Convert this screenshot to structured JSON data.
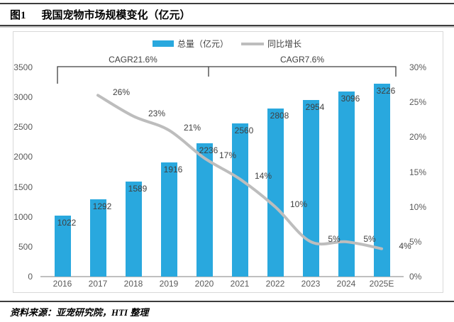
{
  "figure": {
    "tag": "图1",
    "title": "我国宠物市场规模变化（亿元）",
    "source": "资料来源：亚宠研究院，HTI 整理"
  },
  "legend": {
    "items": [
      {
        "label": "总量（亿元）",
        "swatch": "bar"
      },
      {
        "label": "同比增长",
        "swatch": "line"
      }
    ]
  },
  "colors": {
    "bar": "#29a8de",
    "line": "#bdbdbd",
    "label_text": "#3f3f3f",
    "axis_text": "#595959",
    "axis_line": "#bfbfbf",
    "bracket": "#3f3f3f"
  },
  "chart_data": {
    "type": "bar",
    "title": "我国宠物市场规模变化（亿元）",
    "categories": [
      "2016",
      "2017",
      "2018",
      "2019",
      "2020",
      "2021",
      "2022",
      "2023",
      "2024",
      "2025E"
    ],
    "series": [
      {
        "name": "总量（亿元）",
        "type": "bar",
        "axis": "left",
        "values": [
          1022,
          1292,
          1589,
          1916,
          2236,
          2560,
          2808,
          2954,
          3096,
          3226
        ]
      },
      {
        "name": "同比增长",
        "type": "line",
        "axis": "right",
        "values_pct": [
          null,
          26,
          23,
          21,
          17,
          14,
          10,
          5,
          5,
          4
        ],
        "labels": [
          null,
          "26%",
          "23%",
          "21%",
          "17%",
          "14%",
          "10%",
          "5%",
          "5%",
          "4%"
        ]
      }
    ],
    "left_axis": {
      "min": 0,
      "max": 3500,
      "ticks": [
        0,
        500,
        1000,
        1500,
        2000,
        2500,
        3000,
        3500
      ]
    },
    "right_axis": {
      "min": 0,
      "max": 30,
      "ticks": [
        "0%",
        "5%",
        "10%",
        "15%",
        "20%",
        "25%",
        "30%"
      ]
    },
    "annotations": [
      {
        "label": "CAGR21.6%",
        "span": [
          "2016",
          "2020"
        ]
      },
      {
        "label": "CAGR7.6%",
        "span": [
          "2020",
          "2025E"
        ]
      }
    ],
    "legend_position": "top",
    "grid": false
  }
}
